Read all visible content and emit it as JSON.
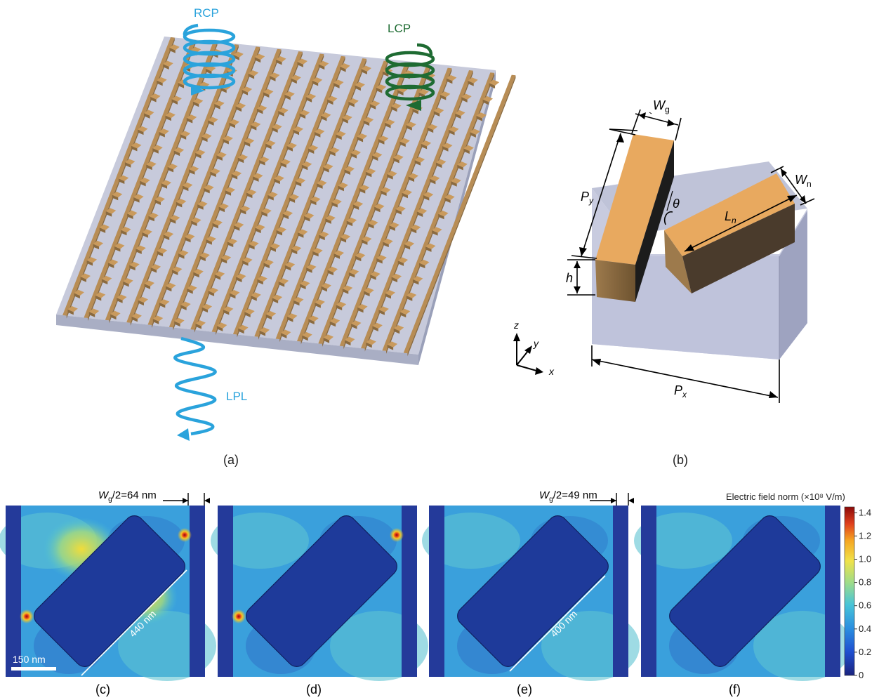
{
  "panel_a": {
    "caption": "(a)",
    "rcp_label": "RCP",
    "lcp_label": "LCP",
    "lpl_label": "LPL",
    "color_rcp": "#2aa3dc",
    "color_lcp": "#1e6b32",
    "color_gold": "#c4955a",
    "color_substrate": "#c4c9dc"
  },
  "panel_b": {
    "caption": "(b)",
    "wg_label": "W",
    "wg_sub": "g",
    "wn_label": "W",
    "wn_sub": "n",
    "py_label": "P",
    "py_sub": "y",
    "ln_label": "L",
    "ln_sub": "n",
    "theta_label": "θ",
    "h_label": "h",
    "px_label": "P",
    "px_sub": "x",
    "axis_z": "z",
    "axis_y": "y",
    "axis_x": "x"
  },
  "field_maps": {
    "colorbar_title": "Electric field norm (×10⁸ V/m)",
    "colorbar_ticks": [
      "1.4",
      "1.2",
      "1.0",
      "0.8",
      "0.6",
      "0.4",
      "0.2",
      "0"
    ],
    "scale_bar": "150 nm",
    "panel_c": {
      "caption": "(c)",
      "gap_w": "W",
      "gap_sub": "g",
      "gap_rest": "/2=64  nm",
      "length": "440 nm"
    },
    "panel_d": {
      "caption": "(d)"
    },
    "panel_e": {
      "caption": "(e)",
      "gap_w": "W",
      "gap_sub": "g",
      "gap_rest": "/2=49  nm",
      "length": "400 nm"
    },
    "panel_f": {
      "caption": "(f)"
    }
  }
}
